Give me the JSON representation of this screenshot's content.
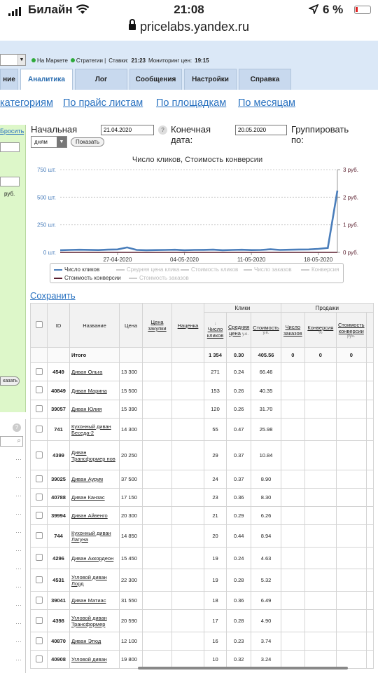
{
  "status_bar": {
    "carrier": "Билайн",
    "time": "21:08",
    "battery": "6 %",
    "url": "pricelabs.yandex.ru"
  },
  "topinfo": {
    "market": "На Маркете",
    "strategies": "Стратегии |",
    "rates_label": "Ставки:",
    "rates_time": "21:23",
    "monitor_label": "Мониторинг цен:",
    "monitor_time": "19:15"
  },
  "tabs": [
    "ние",
    "Аналитика",
    "Лог",
    "Сообщения",
    "Настройки",
    "Справка"
  ],
  "nav_links": [
    "категориям",
    "По прайс листам",
    "По площадкам",
    "По месяцам"
  ],
  "left_panel": {
    "reset": "Бросить",
    "rub": "руб.",
    "show": "казать",
    "help": "?"
  },
  "filters": {
    "start_label": "Начальная дата:",
    "start_value": "21.04.2020",
    "end_label": "Конечная дата:",
    "end_value": "20.05.2020",
    "group_label": "Группировать по:",
    "group_value": "дням",
    "show_button": "Показать",
    "help": "?"
  },
  "chart_data": {
    "type": "line",
    "title": "Число кликов, Стоимость конверсии",
    "x_ticks": [
      "27-04-2020",
      "04-05-2020",
      "11-05-2020",
      "18-05-2020"
    ],
    "y_left_ticks": [
      "750 шт.",
      "500 шт.",
      "250 шт.",
      "0 шт."
    ],
    "y_left_range": [
      0,
      750
    ],
    "y_right_ticks": [
      "3 руб.",
      "2 руб.",
      "1 руб.",
      "0 руб."
    ],
    "y_right_range": [
      0,
      3
    ],
    "series": [
      {
        "name": "Число кликов",
        "color": "#4a7ebb",
        "values": [
          20,
          22,
          24,
          23,
          21,
          25,
          27,
          45,
          22,
          20,
          21,
          22,
          24,
          20,
          22,
          23,
          25,
          20,
          22,
          24,
          21,
          22,
          28,
          22,
          24,
          26,
          27,
          32,
          40,
          560
        ]
      },
      {
        "name": "Стоимость конверсии",
        "color": "#5a1f2e",
        "values": [
          0,
          0,
          0,
          0,
          0,
          0,
          0,
          0,
          0,
          0,
          0,
          0,
          0,
          0,
          0,
          0,
          0,
          0,
          0,
          0,
          0,
          0,
          0,
          0,
          0,
          0,
          0,
          0,
          0,
          0
        ]
      }
    ],
    "legend": [
      {
        "name": "Число кликов",
        "color": "#4a7ebb",
        "active": true
      },
      {
        "name": "Средняя цена клика",
        "color": "#cccccc",
        "active": false
      },
      {
        "name": "Стоимость кликов",
        "color": "#cccccc",
        "active": false
      },
      {
        "name": "Число заказов",
        "color": "#cccccc",
        "active": false
      },
      {
        "name": "Конверсия",
        "color": "#cccccc",
        "active": false
      },
      {
        "name": "Стоимость конверсии",
        "color": "#5a1f2e",
        "active": true
      },
      {
        "name": "Стоимость заказов",
        "color": "#cccccc",
        "active": false
      }
    ]
  },
  "save_link": "Сохранить",
  "table": {
    "groups": {
      "clicks": "Клики",
      "sales": "Продажи"
    },
    "headers": {
      "id": "ID",
      "name": "Название",
      "price": "Цена",
      "buy_price": "Цена закупки",
      "markup": "Наценка",
      "clicks": "Число кликов",
      "avg_price": "Средняя цена",
      "cost": "Стоимость",
      "orders": "Число заказов",
      "conversion": "Конверсия",
      "conv_cost": "Стоимость конверсии",
      "unit_rub": "у.е.",
      "unit_pct": "%",
      "unit_rub2": "руб.",
      "arrow": "↓"
    },
    "total": {
      "label": "Итого",
      "clicks": "1 354",
      "avg": "0.30",
      "cost": "405.56",
      "orders": "0",
      "conv": "0",
      "conv_cost": "0"
    },
    "rows": [
      {
        "id": "4549",
        "name": "Диван Ольга",
        "price": "13 300",
        "clicks": "271",
        "avg": "0.24",
        "cost": "66.46"
      },
      {
        "id": "40849",
        "name": "Диван Марина",
        "price": "15 500",
        "clicks": "153",
        "avg": "0.26",
        "cost": "40.35"
      },
      {
        "id": "39057",
        "name": "Диван Юлия",
        "price": "15 390",
        "clicks": "120",
        "avg": "0.26",
        "cost": "31.70"
      },
      {
        "id": "741",
        "name": "Кухонный диван Беседа-2",
        "price": "14 300",
        "clicks": "55",
        "avg": "0.47",
        "cost": "25.98"
      },
      {
        "id": "4399",
        "name": "Диван Трансформер нов",
        "price": "20 250",
        "clicks": "29",
        "avg": "0.37",
        "cost": "10.84"
      },
      {
        "id": "39025",
        "name": "Диван Аурум",
        "price": "37 500",
        "clicks": "24",
        "avg": "0.37",
        "cost": "8.90"
      },
      {
        "id": "40788",
        "name": "Диван Канзас",
        "price": "17 150",
        "clicks": "23",
        "avg": "0.36",
        "cost": "8.30"
      },
      {
        "id": "39994",
        "name": "Диван Айвенго",
        "price": "20 300",
        "clicks": "21",
        "avg": "0.29",
        "cost": "6.26"
      },
      {
        "id": "744",
        "name": "Кухонный диван Лагуна",
        "price": "14 850",
        "clicks": "20",
        "avg": "0.44",
        "cost": "8.94"
      },
      {
        "id": "4296",
        "name": "Диван Аккордеон",
        "price": "15 450",
        "clicks": "19",
        "avg": "0.24",
        "cost": "4.63"
      },
      {
        "id": "4531",
        "name": "Угловой диван Лорд",
        "price": "22 300",
        "clicks": "19",
        "avg": "0.28",
        "cost": "5.32"
      },
      {
        "id": "39041",
        "name": "Диван Матиас",
        "price": "31 550",
        "clicks": "18",
        "avg": "0.36",
        "cost": "6.49"
      },
      {
        "id": "4398",
        "name": "Угловой диван Трансформер",
        "price": "20 590",
        "clicks": "17",
        "avg": "0.28",
        "cost": "4.90"
      },
      {
        "id": "40870",
        "name": "Диван Этюд",
        "price": "12 100",
        "clicks": "16",
        "avg": "0.23",
        "cost": "3.74"
      },
      {
        "id": "40908",
        "name": "Угловой диван",
        "price": "19 800",
        "clicks": "10",
        "avg": "0.32",
        "cost": "3.24"
      }
    ]
  }
}
